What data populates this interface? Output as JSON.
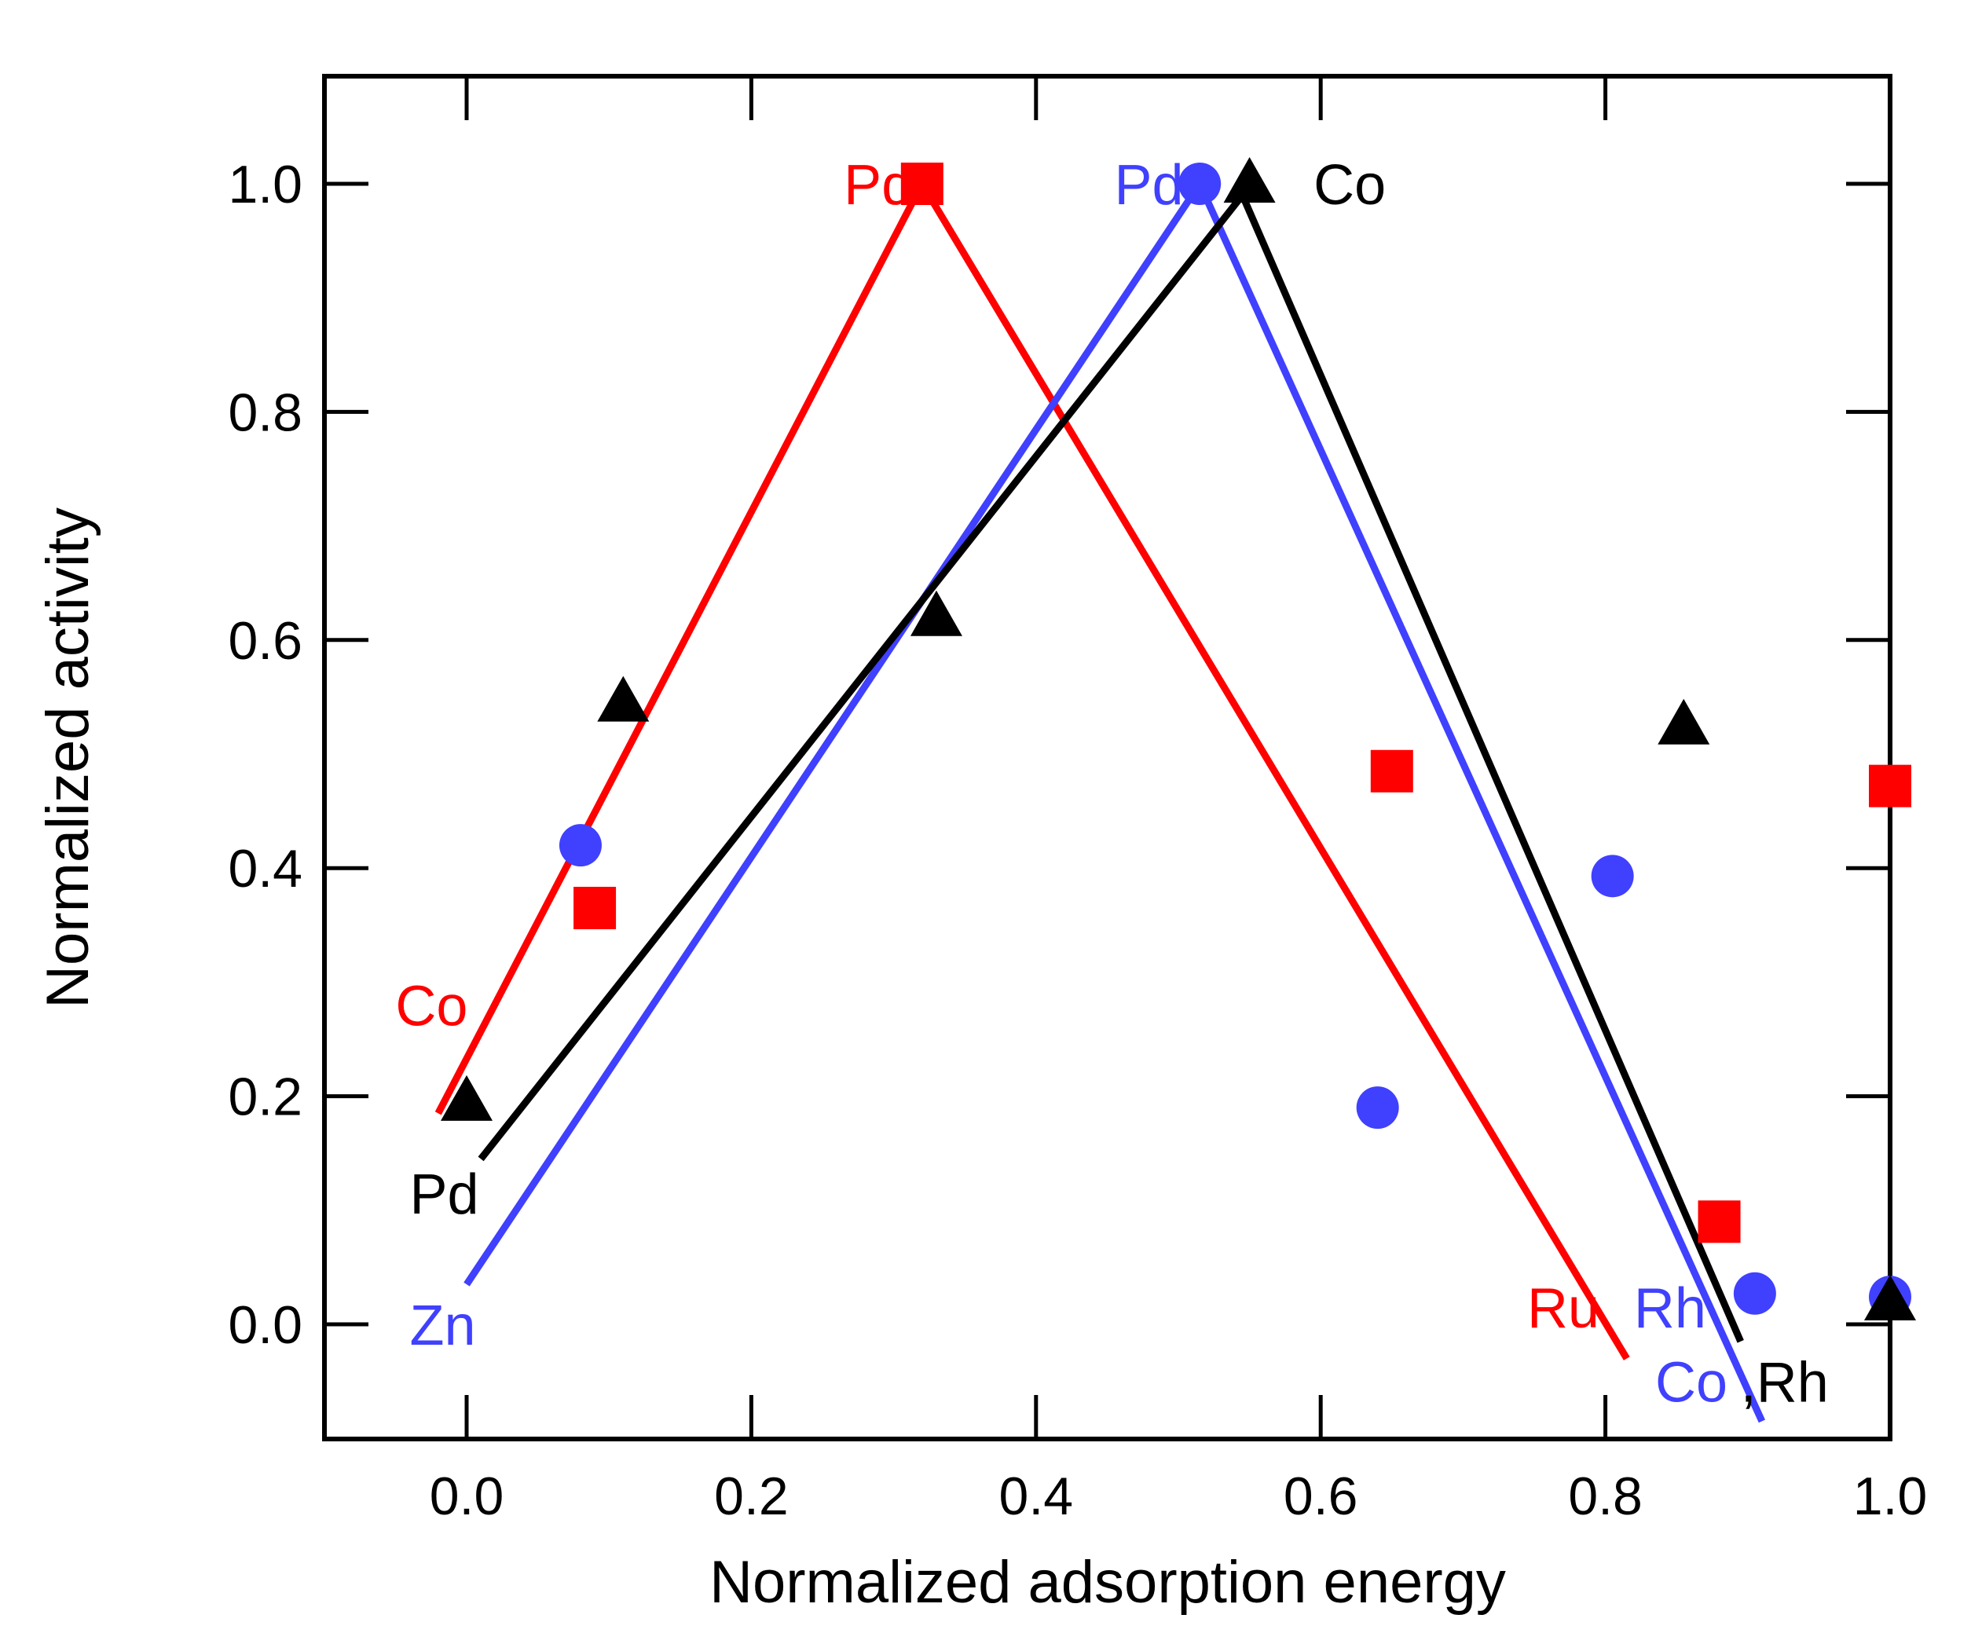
{
  "chart_data": {
    "type": "scatter",
    "title": "",
    "xlabel": "Normalized adsorption energy",
    "ylabel": "Normalized activity",
    "xlim": [
      -0.1,
      1.0
    ],
    "ylim": [
      -0.1,
      1.1
    ],
    "xticks": [
      0.0,
      0.2,
      0.4,
      0.6,
      0.8,
      1.0
    ],
    "yticks": [
      0.0,
      0.2,
      0.4,
      0.6,
      0.8,
      1.0
    ],
    "xtick_labels": [
      "0.0",
      "0.2",
      "0.4",
      "0.6",
      "0.8",
      "1.0"
    ],
    "ytick_labels": [
      "0.0",
      "0.2",
      "0.4",
      "0.6",
      "0.8",
      "1.0"
    ],
    "grid": false,
    "series": [
      {
        "name": "red-squares",
        "color": "#ff0000",
        "marker": "square",
        "points": [
          [
            0.32,
            1.0
          ],
          [
            0.09,
            0.365
          ],
          [
            0.65,
            0.485
          ],
          [
            0.88,
            0.09
          ],
          [
            1.0,
            0.472
          ]
        ],
        "fit_line": [
          [
            -0.02,
            0.185
          ],
          [
            0.32,
            1.0
          ],
          [
            0.815,
            -0.03
          ]
        ]
      },
      {
        "name": "blue-circles",
        "color": "#4040ff",
        "marker": "circle",
        "points": [
          [
            0.515,
            1.0
          ],
          [
            0.08,
            0.42
          ],
          [
            0.64,
            0.19
          ],
          [
            0.805,
            0.393
          ],
          [
            0.905,
            0.027
          ],
          [
            1.0,
            0.024
          ]
        ],
        "fit_line": [
          [
            0.0,
            0.035
          ],
          [
            0.515,
            1.0
          ],
          [
            0.91,
            -0.085
          ]
        ]
      },
      {
        "name": "black-triangles",
        "color": "#000000",
        "marker": "triangle",
        "points": [
          [
            0.55,
            1.0
          ],
          [
            0.0,
            0.195
          ],
          [
            0.11,
            0.545
          ],
          [
            0.33,
            0.62
          ],
          [
            0.855,
            0.525
          ],
          [
            1.0,
            0.02
          ]
        ],
        "fit_line": [
          [
            0.01,
            0.145
          ],
          [
            0.545,
            0.99
          ],
          [
            0.895,
            -0.015
          ]
        ]
      }
    ],
    "annotations": [
      {
        "text": "Pd",
        "color": "#ff0000",
        "x": 0.265,
        "y": 1.0
      },
      {
        "text": "Co",
        "color": "#ff0000",
        "x": -0.05,
        "y": 0.28
      },
      {
        "text": "Ru",
        "color": "#ff0000",
        "x": 0.745,
        "y": 0.015
      },
      {
        "text": "Pd",
        "color": "#4040ff",
        "x": 0.455,
        "y": 1.0
      },
      {
        "text": "Zn",
        "color": "#4040ff",
        "x": -0.04,
        "y": 0.0
      },
      {
        "text": "Rh",
        "color": "#4040ff",
        "x": 0.82,
        "y": 0.015
      },
      {
        "text": "Co",
        "color": "#4040ff",
        "x": 0.835,
        "y": -0.05
      },
      {
        "text": "Co",
        "color": "#000000",
        "x": 0.595,
        "y": 1.0
      },
      {
        "text": "Pd",
        "color": "#000000",
        "x": -0.04,
        "y": 0.115
      },
      {
        "text": ",Rh",
        "color": "#000000",
        "x": 0.895,
        "y": -0.05
      }
    ]
  }
}
